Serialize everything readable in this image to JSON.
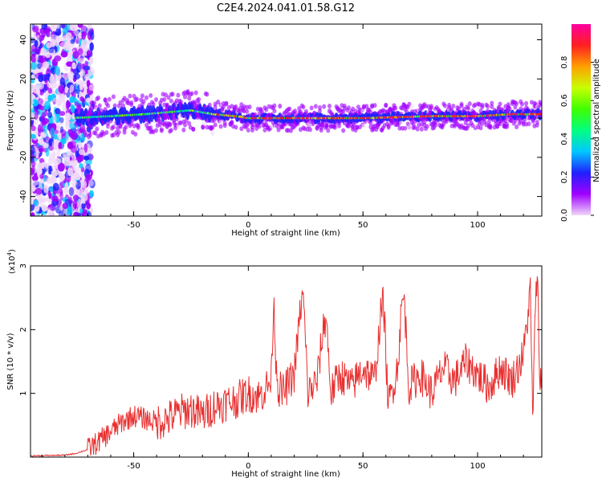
{
  "title": "C2E4.2024.041.01.58.G12",
  "chart_data": [
    {
      "type": "heatmap",
      "xlabel": "Height of straight line (km)",
      "ylabel": "Frequency (Hz)",
      "xlim": [
        -95,
        128
      ],
      "ylim": [
        -50,
        48
      ],
      "xticks": [
        -50,
        0,
        50,
        100
      ],
      "yticks": [
        -40,
        -20,
        0,
        20,
        40
      ],
      "ridge": [
        {
          "x": -78,
          "y": 0
        },
        {
          "x": -60,
          "y": 1
        },
        {
          "x": -45,
          "y": 2
        },
        {
          "x": -35,
          "y": 3
        },
        {
          "x": -25,
          "y": 4
        },
        {
          "x": -15,
          "y": 2
        },
        {
          "x": -5,
          "y": 1
        },
        {
          "x": 0,
          "y": 0
        },
        {
          "x": 50,
          "y": 0
        },
        {
          "x": 80,
          "y": 1
        },
        {
          "x": 100,
          "y": 1
        },
        {
          "x": 115,
          "y": 2
        },
        {
          "x": 128,
          "y": 2
        }
      ],
      "colorbar": {
        "label": "Normalized spectral amplitude",
        "range": [
          0,
          1
        ],
        "ticks": [
          "0.0",
          "0.2",
          "0.4",
          "0.6",
          "0.8"
        ],
        "colors": [
          "#f0d8f8",
          "#a000ff",
          "#2020ff",
          "#00c8ff",
          "#00ff80",
          "#40ff00",
          "#c8ff00",
          "#ffa000",
          "#ff2020",
          "#ff00a0"
        ]
      }
    },
    {
      "type": "line",
      "xlabel": "Height of straight line (km)",
      "ylabel": "SNR (10 * v/v)",
      "scale_label": "(x10",
      "scale_exp": "4",
      "scale_close": ")",
      "xlim": [
        -95,
        128
      ],
      "ylim": [
        0,
        3
      ],
      "xticks": [
        -50,
        0,
        50,
        100
      ],
      "yticks": [
        1,
        2,
        3
      ],
      "color": "#e83030",
      "x": [
        -95,
        -80,
        -75,
        -70,
        -65,
        -60,
        -55,
        -50,
        -45,
        -40,
        -35,
        -30,
        -25,
        -20,
        -15,
        -10,
        -5,
        0,
        5,
        10,
        11,
        12,
        13,
        15,
        20,
        23,
        24,
        26,
        30,
        33,
        34,
        36,
        40,
        45,
        50,
        55,
        58,
        59,
        61,
        65,
        67,
        68,
        70,
        75,
        80,
        85,
        90,
        95,
        100,
        105,
        110,
        115,
        120,
        123,
        124,
        125,
        126,
        127,
        128
      ],
      "y": [
        0.02,
        0.03,
        0.06,
        0.12,
        0.25,
        0.4,
        0.55,
        0.65,
        0.6,
        0.55,
        0.6,
        0.7,
        0.75,
        0.65,
        0.8,
        0.85,
        0.9,
        1.0,
        0.95,
        1.2,
        2.5,
        1.6,
        1.1,
        1.0,
        1.3,
        2.4,
        2.5,
        1.0,
        1.2,
        2.1,
        2.2,
        1.0,
        1.3,
        1.1,
        1.4,
        1.2,
        2.3,
        2.45,
        0.8,
        1.4,
        2.4,
        2.5,
        1.1,
        1.3,
        1.0,
        1.4,
        1.2,
        1.5,
        1.3,
        1.1,
        1.4,
        1.2,
        1.6,
        2.6,
        0.6,
        2.0,
        3.0,
        1.4,
        1.2
      ]
    }
  ]
}
